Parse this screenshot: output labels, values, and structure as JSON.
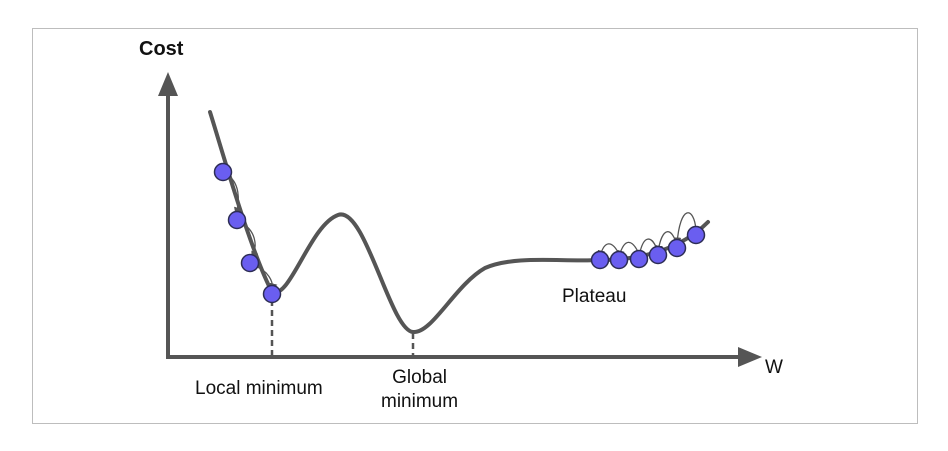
{
  "axes": {
    "y_label": "Cost",
    "x_label": "W"
  },
  "annotations": {
    "local_minimum": "Local minimum",
    "global_minimum_line1": "Global",
    "global_minimum_line2": "minimum",
    "plateau": "Plateau"
  },
  "colors": {
    "curve": "#555555",
    "ball_fill": "#6a5ef0",
    "ball_stroke": "#2d2d55",
    "axis": "#555555",
    "frame": "#bdbdbd"
  }
}
